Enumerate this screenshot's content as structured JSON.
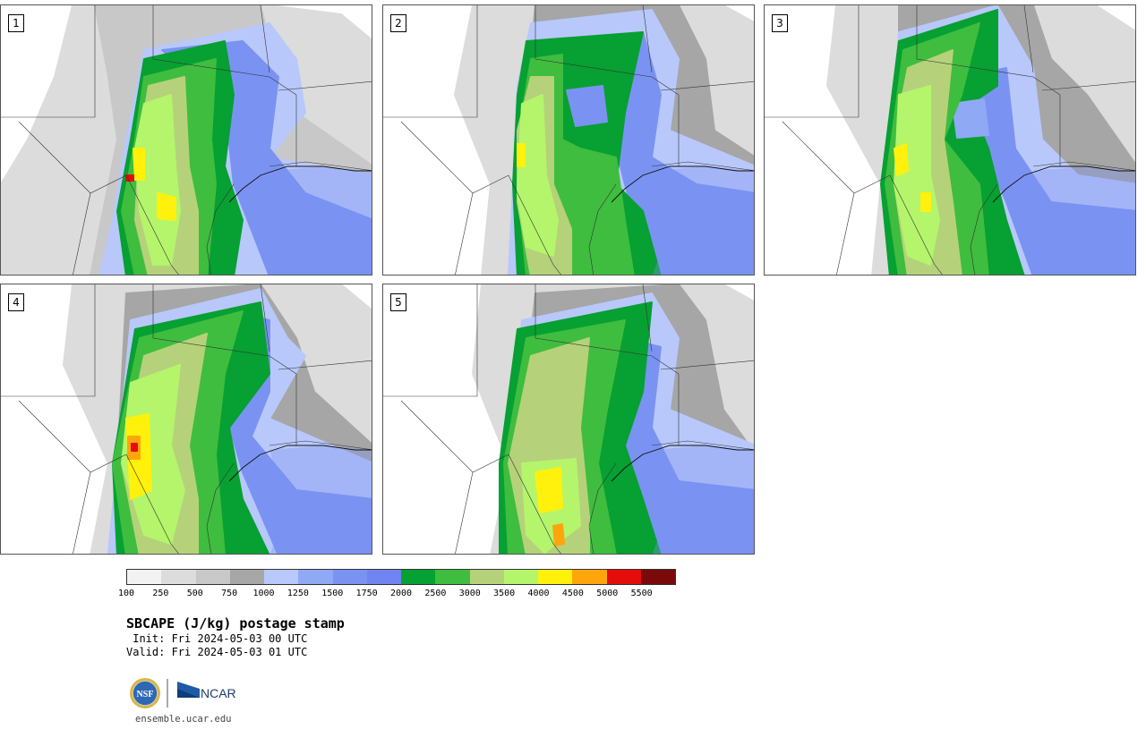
{
  "panels": [
    {
      "label": "1",
      "variant": "a"
    },
    {
      "label": "2",
      "variant": "b"
    },
    {
      "label": "3",
      "variant": "c"
    },
    {
      "label": "4",
      "variant": "d"
    },
    {
      "label": "5",
      "variant": "e"
    }
  ],
  "legend": {
    "colors": [
      "#f2f2f2",
      "#dcdcdc",
      "#c8c8c8",
      "#a6a6a6",
      "#b8c8fb",
      "#8fa9f5",
      "#7a93f2",
      "#6f84f1",
      "#07a032",
      "#3fbd3f",
      "#b5d27a",
      "#b4f56c",
      "#fff10c",
      "#ffa50c",
      "#e50c0c",
      "#7a0a0a"
    ],
    "ticks": [
      "100",
      "250",
      "500",
      "750",
      "1000",
      "1250",
      "1500",
      "1750",
      "2000",
      "2500",
      "3000",
      "3500",
      "4000",
      "4500",
      "5000",
      "5500"
    ]
  },
  "title": "SBCAPE (J/kg) postage stamp",
  "init": " Init: Fri 2024-05-03 00 UTC",
  "valid": "Valid: Fri 2024-05-03 01 UTC",
  "url": "ensemble.ucar.edu",
  "logos": {
    "nsf_text": "NSF",
    "ncar_text": "NCAR"
  }
}
